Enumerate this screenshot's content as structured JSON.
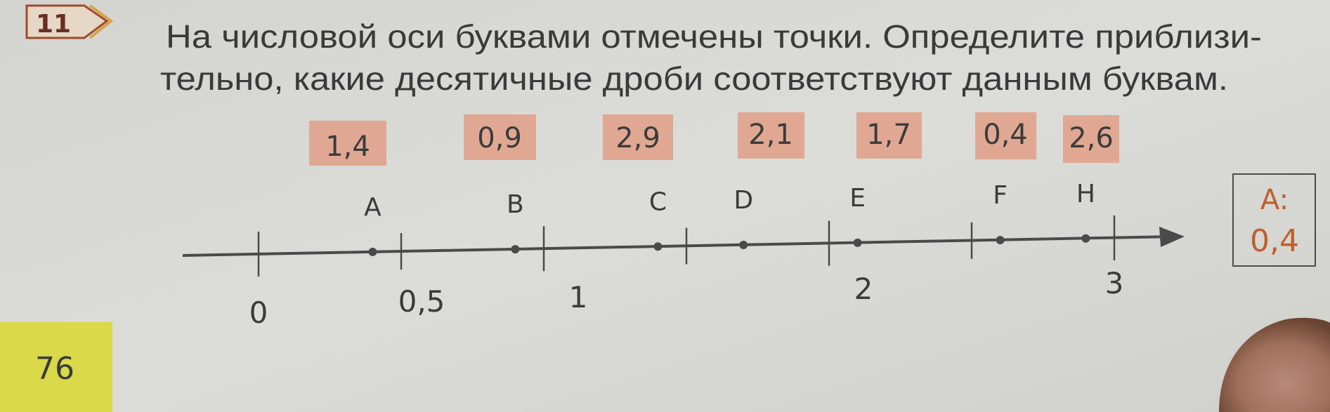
{
  "exercise": {
    "number": "11",
    "line1": "На числовой оси буквами отмечены точки. Определите приблизи-",
    "line2": "тельно, какие десятичные дроби  соответствуют данным буквам."
  },
  "options": [
    "1,4",
    "0,9",
    "2,9",
    "2,1",
    "1,7",
    "0,4",
    "2,6"
  ],
  "number_line": {
    "tick_values": [
      0,
      0.5,
      1,
      1.5,
      2,
      2.5,
      3
    ],
    "tick_labels": {
      "t0": "0",
      "t05": "0,5",
      "t1": "1",
      "t2": "2",
      "t3": "3"
    },
    "points": [
      {
        "label": "A",
        "value": 0.4
      },
      {
        "label": "B",
        "value": 0.9
      },
      {
        "label": "C",
        "value": 1.4
      },
      {
        "label": "D",
        "value": 1.7
      },
      {
        "label": "E",
        "value": 2.1
      },
      {
        "label": "F",
        "value": 2.6
      },
      {
        "label": "H",
        "value": 2.9
      }
    ]
  },
  "answer": {
    "label": "A:",
    "value": "0,4"
  },
  "page_number": "76",
  "colors": {
    "option_fill": "#e0a893",
    "answer_text": "#c0602e",
    "page_tag": "#d9d94a",
    "text": "#3b3b3b"
  }
}
